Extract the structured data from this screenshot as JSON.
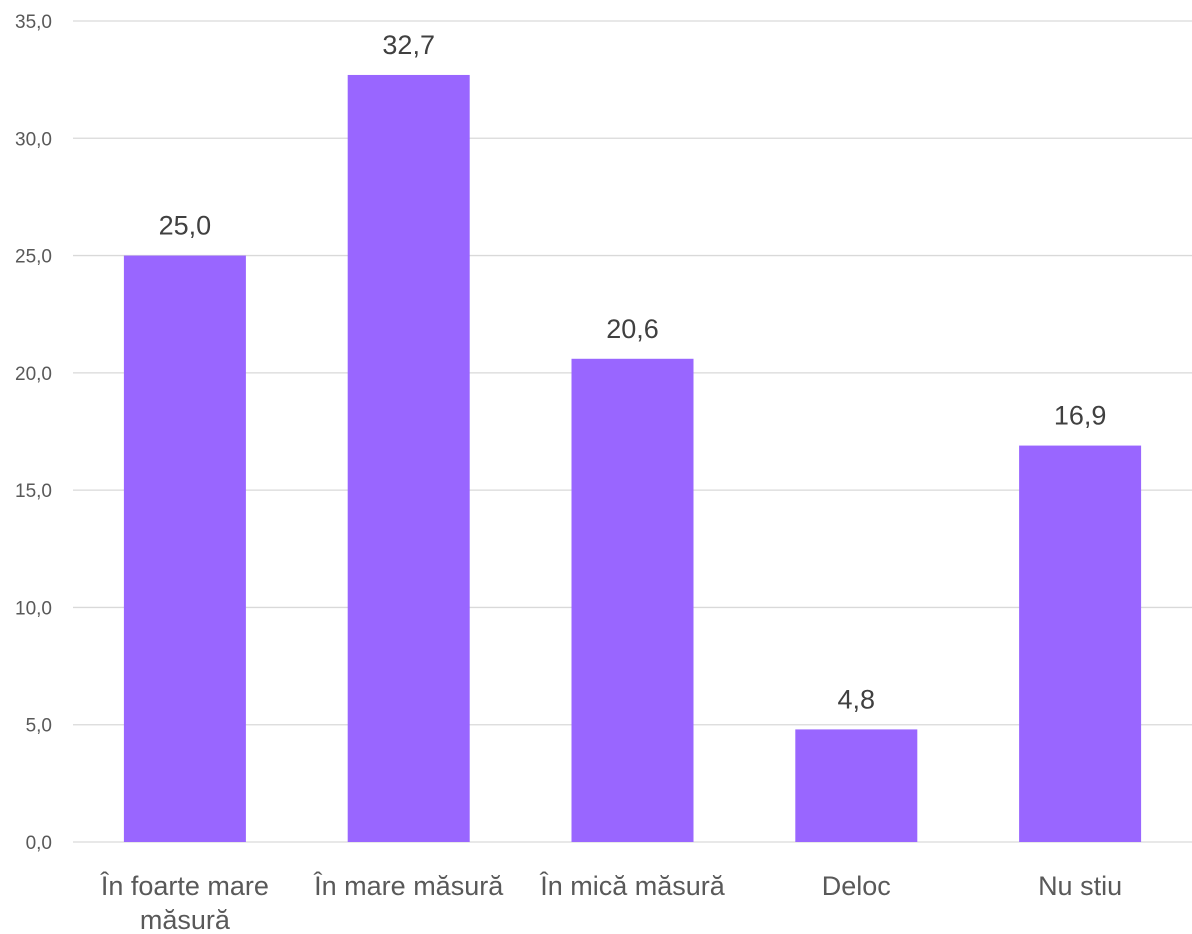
{
  "chart_data": {
    "type": "bar",
    "title": "",
    "xlabel": "",
    "ylabel": "",
    "categories": [
      [
        "În foarte mare",
        "măsură"
      ],
      [
        "În mare măsură"
      ],
      [
        "În mică măsură"
      ],
      [
        "Deloc"
      ],
      [
        "Nu stiu"
      ]
    ],
    "values": [
      25.0,
      32.7,
      20.6,
      4.8,
      16.9
    ],
    "value_labels": [
      "25,0",
      "32,7",
      "20,6",
      "4,8",
      "16,9"
    ],
    "ylim": [
      0,
      35
    ],
    "y_ticks": [
      0,
      5,
      10,
      15,
      20,
      25,
      30,
      35
    ],
    "y_tick_labels": [
      "0,0",
      "5,0",
      "10,0",
      "15,0",
      "20,0",
      "25,0",
      "30,0",
      "35,0"
    ],
    "grid": true,
    "legend": "none",
    "bar_color": "#9966ff"
  }
}
